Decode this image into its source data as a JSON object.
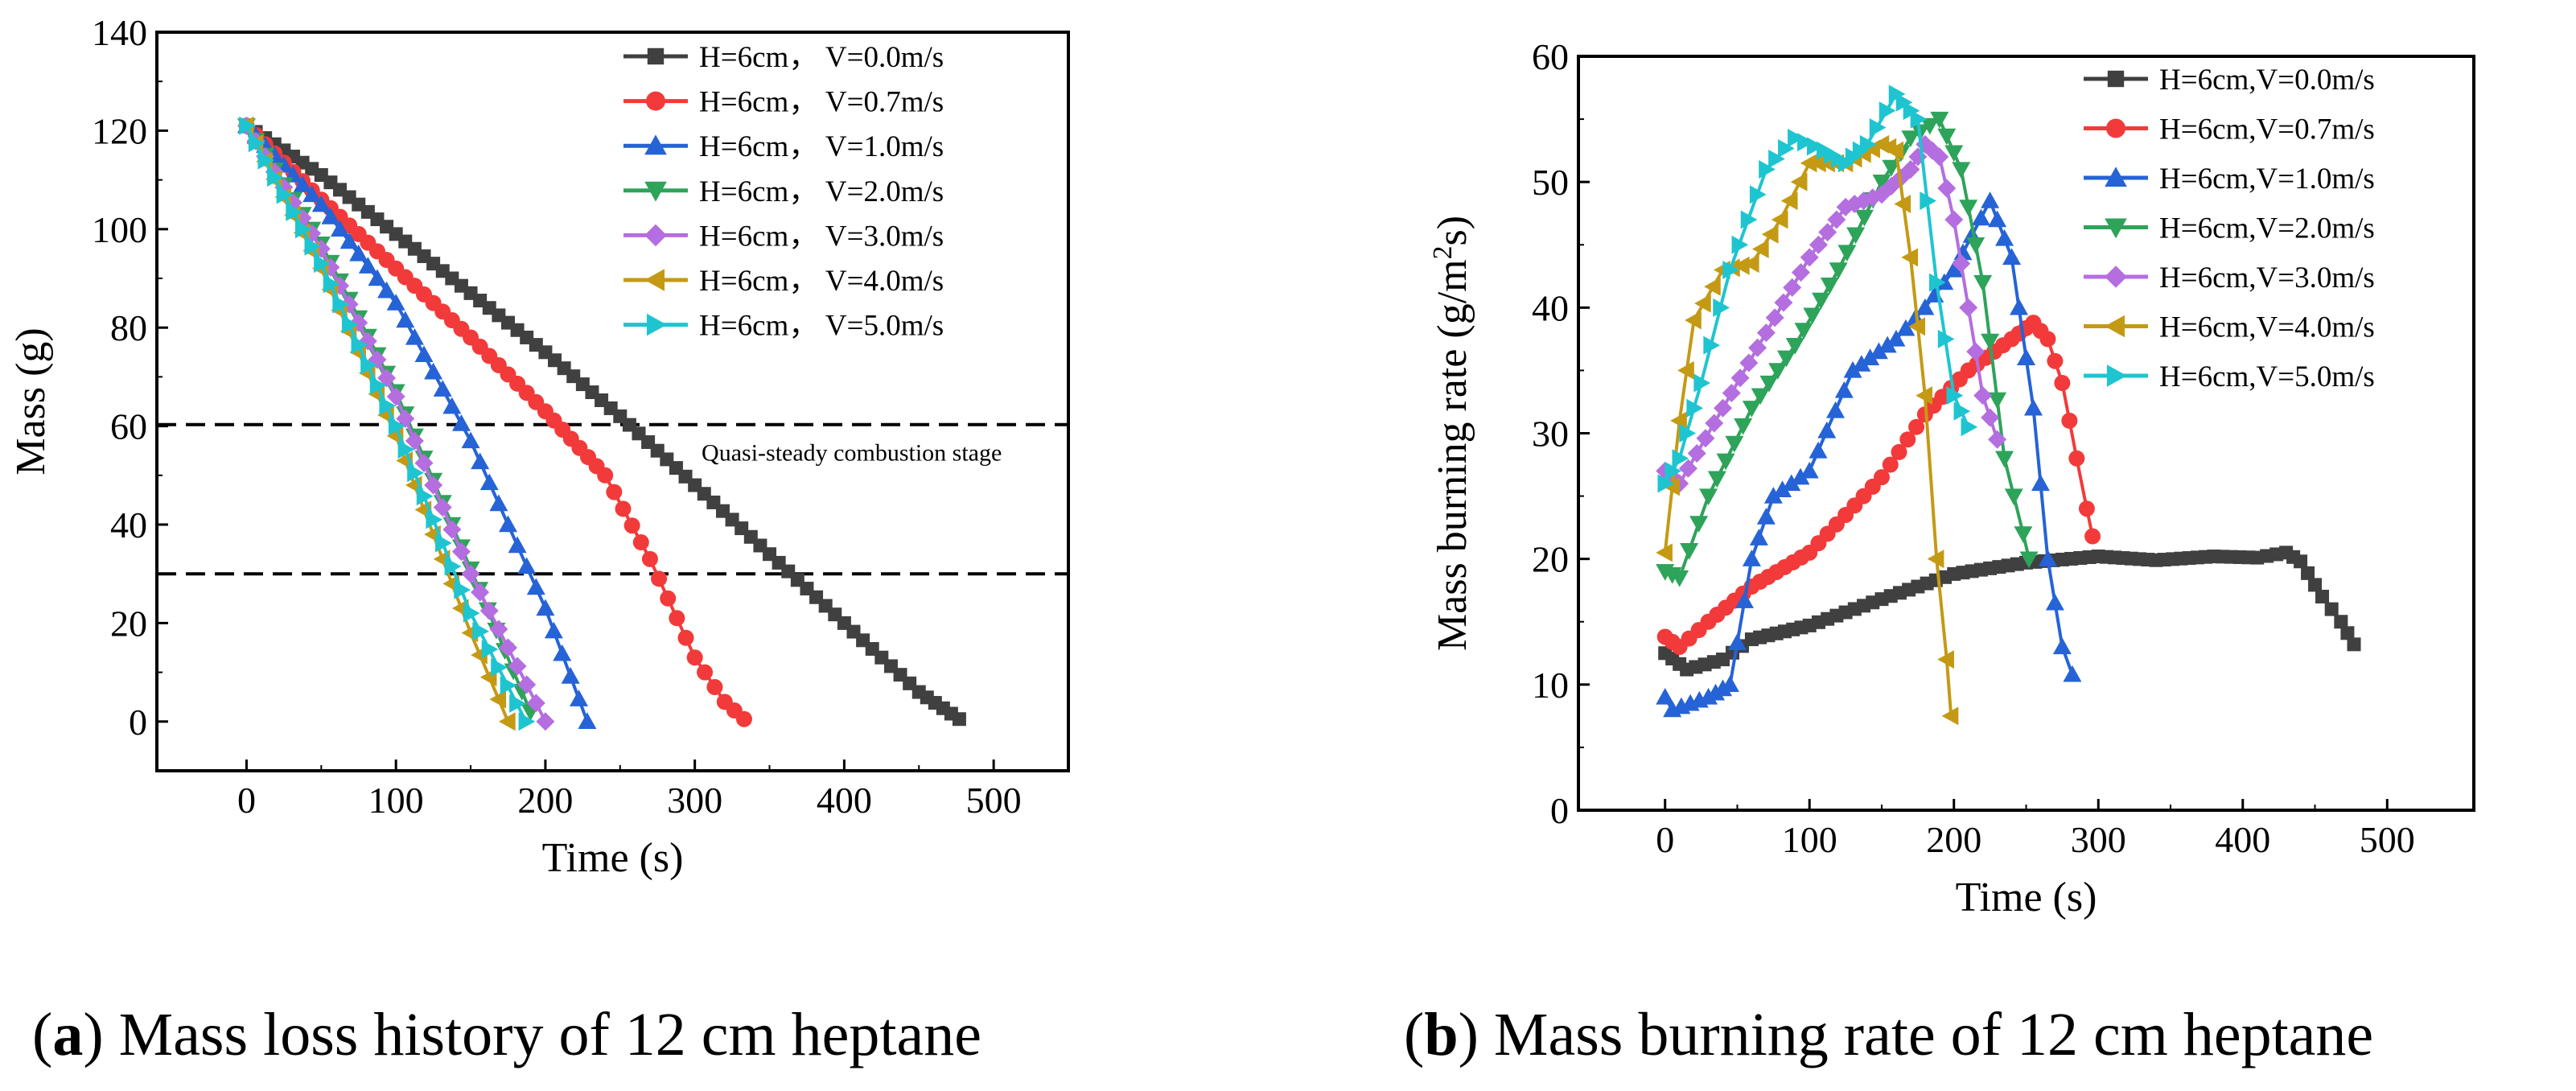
{
  "captions": {
    "a": {
      "open": "(",
      "letter": "a",
      "rest": ") Mass loss history of 12 cm heptane"
    },
    "b": {
      "open": "(",
      "letter": "b",
      "rest": ") Mass burning rate of 12 cm heptane"
    }
  },
  "chart_data": [
    {
      "id": "a",
      "type": "line",
      "title": "",
      "xlabel": "Time (s)",
      "ylabel": "Mass (g)",
      "xlim": [
        -60,
        550
      ],
      "ylim": [
        -10,
        140
      ],
      "xticks": [
        0,
        100,
        200,
        300,
        400,
        500
      ],
      "yticks": [
        0,
        20,
        40,
        60,
        80,
        100,
        120,
        140
      ],
      "grid": false,
      "legend_position": "top-right",
      "reference_lines": [
        {
          "type": "hline",
          "y": 60.3,
          "style": "dashed"
        },
        {
          "type": "hline",
          "y": 30.0,
          "style": "dashed"
        }
      ],
      "annotations": [
        {
          "text": "Quasi-steady combustion stage",
          "x": 405,
          "y": 53
        }
      ],
      "series": [
        {
          "name": "H=6cm， V=0.0m/s",
          "color": "#404040",
          "marker": "square",
          "points": [
            [
              0,
              121
            ],
            [
              50,
              111
            ],
            [
              100,
              99
            ],
            [
              150,
              87
            ],
            [
              200,
              75
            ],
            [
              250,
              62
            ],
            [
              300,
              48
            ],
            [
              350,
              34
            ],
            [
              400,
              20
            ],
            [
              450,
              6
            ],
            [
              477,
              0.5
            ]
          ]
        },
        {
          "name": "H=6cm， V=0.7m/s",
          "color": "#f23a3a",
          "marker": "circle",
          "points": [
            [
              0,
              121
            ],
            [
              50,
              106
            ],
            [
              100,
              92
            ],
            [
              150,
              78
            ],
            [
              200,
              63
            ],
            [
              240,
              50
            ],
            [
              270,
              33
            ],
            [
              300,
              13
            ],
            [
              320,
              4
            ],
            [
              333,
              0.5
            ]
          ]
        },
        {
          "name": "H=6cm， V=1.0m/s",
          "color": "#2563d6",
          "marker": "triangle-up",
          "points": [
            [
              0,
              121
            ],
            [
              50,
              105
            ],
            [
              100,
              85
            ],
            [
              150,
              57
            ],
            [
              200,
              23
            ],
            [
              228,
              0
            ]
          ]
        },
        {
          "name": "H=6cm， V=2.0m/s",
          "color": "#2ea35a",
          "marker": "triangle-down",
          "points": [
            [
              0,
              121
            ],
            [
              50,
              97
            ],
            [
              100,
              67
            ],
            [
              150,
              31
            ],
            [
              190,
              2
            ]
          ]
        },
        {
          "name": "H=6cm， V=3.0m/s",
          "color": "#b46ee0",
          "marker": "diamond",
          "points": [
            [
              0,
              121
            ],
            [
              50,
              96
            ],
            [
              100,
              66
            ],
            [
              150,
              30
            ],
            [
              200,
              0
            ]
          ]
        },
        {
          "name": "H=6cm， V=4.0m/s",
          "color": "#c49a14",
          "marker": "triangle-left",
          "points": [
            [
              0,
              121
            ],
            [
              50,
              92
            ],
            [
              100,
              58
            ],
            [
              150,
              18
            ],
            [
              175,
              0
            ]
          ]
        },
        {
          "name": "H=6cm， V=5.0m/s",
          "color": "#1ec5d0",
          "marker": "triangle-right",
          "points": [
            [
              0,
              121
            ],
            [
              50,
              93
            ],
            [
              100,
              60
            ],
            [
              150,
              22
            ],
            [
              187,
              0
            ]
          ]
        }
      ]
    },
    {
      "id": "b",
      "type": "line",
      "title": "",
      "xlabel": "Time (s)",
      "ylabel": "Mass burning rate (g/m²s)",
      "xlim": [
        -60,
        560
      ],
      "ylim": [
        0,
        60
      ],
      "xticks": [
        0,
        100,
        200,
        300,
        400,
        500
      ],
      "yticks": [
        0,
        10,
        20,
        30,
        40,
        50,
        60
      ],
      "grid": false,
      "legend_position": "top-right",
      "series": [
        {
          "name": "H=6cm,V=0.0m/s",
          "color": "#404040",
          "marker": "square",
          "points": [
            [
              0,
              12.5
            ],
            [
              15,
              11.2
            ],
            [
              40,
              12
            ],
            [
              60,
              13.6
            ],
            [
              100,
              14.7
            ],
            [
              150,
              16.8
            ],
            [
              200,
              18.8
            ],
            [
              250,
              19.7
            ],
            [
              300,
              20.2
            ],
            [
              340,
              19.9
            ],
            [
              380,
              20.2
            ],
            [
              410,
              20.1
            ],
            [
              430,
              20.5
            ],
            [
              440,
              19.8
            ],
            [
              455,
              17
            ],
            [
              468,
              15
            ],
            [
              477,
              13.2
            ]
          ]
        },
        {
          "name": "H=6cm,V=0.7m/s",
          "color": "#f23a3a",
          "marker": "circle",
          "points": [
            [
              0,
              13.8
            ],
            [
              10,
              13
            ],
            [
              30,
              15
            ],
            [
              60,
              17.8
            ],
            [
              100,
              20.5
            ],
            [
              150,
              26.5
            ],
            [
              180,
              31.5
            ],
            [
              210,
              35
            ],
            [
              240,
              37.5
            ],
            [
              255,
              38.8
            ],
            [
              265,
              37.5
            ],
            [
              275,
              34
            ],
            [
              285,
              28
            ],
            [
              292,
              24
            ],
            [
              296,
              21.8
            ]
          ]
        },
        {
          "name": "H=6cm,V=1.0m/s",
          "color": "#2563d6",
          "marker": "triangle-up",
          "points": [
            [
              0,
              9
            ],
            [
              5,
              8
            ],
            [
              30,
              9
            ],
            [
              45,
              10
            ],
            [
              60,
              20
            ],
            [
              75,
              25
            ],
            [
              100,
              27
            ],
            [
              130,
              35
            ],
            [
              160,
              37.5
            ],
            [
              180,
              40
            ],
            [
              200,
              43
            ],
            [
              225,
              48.5
            ],
            [
              240,
              44
            ],
            [
              255,
              32
            ],
            [
              265,
              20
            ],
            [
              275,
              13
            ],
            [
              282,
              10.8
            ]
          ]
        },
        {
          "name": "H=6cm,V=2.0m/s",
          "color": "#2ea35a",
          "marker": "triangle-down",
          "points": [
            [
              0,
              19
            ],
            [
              10,
              18.5
            ],
            [
              30,
              25
            ],
            [
              60,
              32
            ],
            [
              90,
              37
            ],
            [
              120,
              43
            ],
            [
              150,
              50
            ],
            [
              170,
              53.5
            ],
            [
              190,
              55
            ],
            [
              205,
              51
            ],
            [
              220,
              42
            ],
            [
              235,
              28
            ],
            [
              248,
              22
            ],
            [
              252,
              20
            ]
          ]
        },
        {
          "name": "H=6cm,V=3.0m/s",
          "color": "#b46ee0",
          "marker": "diamond",
          "points": [
            [
              0,
              27
            ],
            [
              10,
              26
            ],
            [
              40,
              32
            ],
            [
              70,
              38
            ],
            [
              100,
              44
            ],
            [
              125,
              48
            ],
            [
              150,
              49
            ],
            [
              170,
              51
            ],
            [
              180,
              53
            ],
            [
              190,
              52
            ],
            [
              200,
              47
            ],
            [
              210,
              40
            ],
            [
              220,
              33
            ],
            [
              230,
              29.5
            ]
          ]
        },
        {
          "name": "H=6cm,V=4.0m/s",
          "color": "#c49a14",
          "marker": "triangle-left",
          "points": [
            [
              0,
              20.5
            ],
            [
              10,
              31
            ],
            [
              20,
              39
            ],
            [
              40,
              43
            ],
            [
              60,
              43.5
            ],
            [
              80,
              47
            ],
            [
              100,
              51.5
            ],
            [
              125,
              51.5
            ],
            [
              150,
              53
            ],
            [
              160,
              52.5
            ],
            [
              170,
              44
            ],
            [
              180,
              33
            ],
            [
              188,
              20
            ],
            [
              195,
              12
            ],
            [
              198,
              7.5
            ]
          ]
        },
        {
          "name": "H=6cm,V=5.0m/s",
          "color": "#1ec5d0",
          "marker": "triangle-right",
          "points": [
            [
              0,
              26
            ],
            [
              10,
              28
            ],
            [
              25,
              34
            ],
            [
              45,
              43
            ],
            [
              70,
              51
            ],
            [
              90,
              53.5
            ],
            [
              110,
              52.5
            ],
            [
              125,
              51.5
            ],
            [
              140,
              53
            ],
            [
              160,
              57
            ],
            [
              175,
              55
            ],
            [
              188,
              42
            ],
            [
              200,
              33
            ],
            [
              210,
              30.5
            ]
          ]
        }
      ]
    }
  ]
}
